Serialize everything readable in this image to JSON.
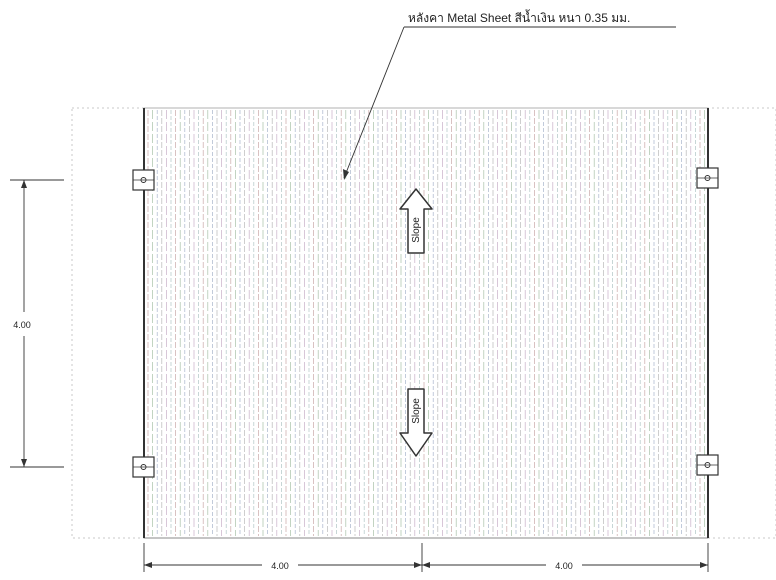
{
  "annotation": {
    "roof_note": "หลังคา Metal Sheet สีน้ำเงิน หนา 0.35 มม."
  },
  "arrows": {
    "slope_up_label": "Slope",
    "slope_down_label": "Slope"
  },
  "dimensions": {
    "vertical_span": "4.00",
    "horizontal_span_left": "4.00",
    "horizontal_span_right": "4.00"
  }
}
